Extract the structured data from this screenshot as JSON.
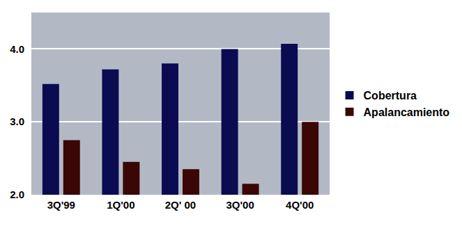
{
  "chart_data": {
    "type": "bar",
    "categories": [
      "3Q'99",
      "1Q'00",
      "2Q' 00",
      "3Q'00",
      "4Q'00"
    ],
    "series": [
      {
        "name": "Cobertura",
        "color": "#0b0b52",
        "values": [
          3.52,
          3.72,
          3.8,
          4.0,
          4.07
        ]
      },
      {
        "name": "Apalancamiento",
        "color": "#3a0606",
        "values": [
          2.75,
          2.45,
          2.35,
          2.15,
          3.0
        ]
      }
    ],
    "ylim": [
      2,
      4.5
    ],
    "yticks": [
      {
        "value": 2,
        "label": "2.0"
      },
      {
        "value": 3,
        "label": "3.0"
      },
      {
        "value": 4,
        "label": "4.0"
      }
    ],
    "grid": true,
    "legend": "right"
  }
}
